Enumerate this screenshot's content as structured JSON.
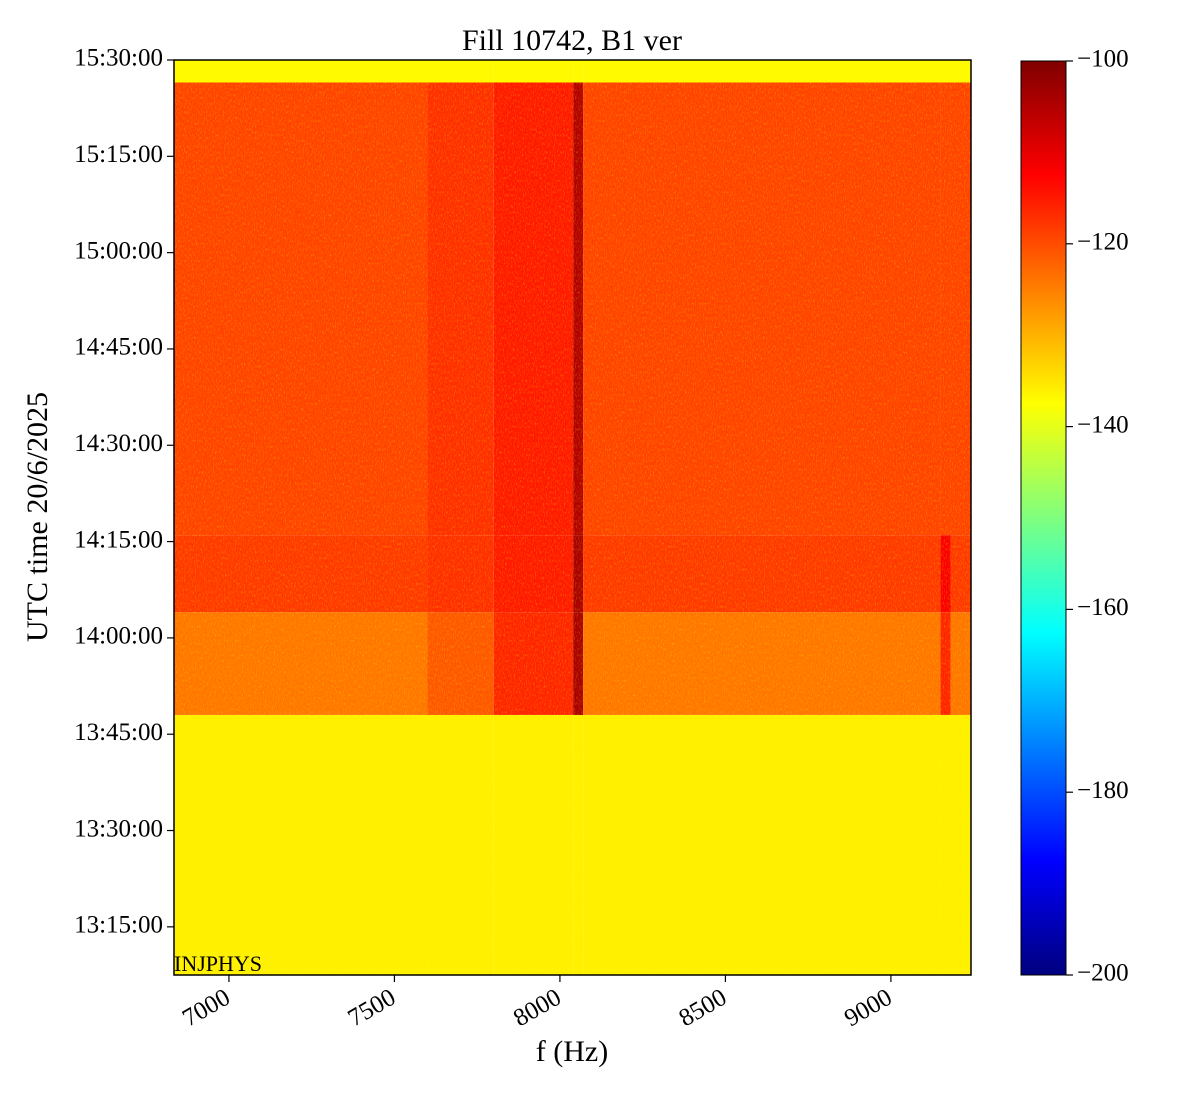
{
  "chart_data": {
    "type": "spectrogram",
    "title": "Fill 10742, B1 ver",
    "xlabel": "f (Hz)",
    "ylabel": "UTC time 20/6/2025",
    "annotation": "INJPHYS",
    "xlim": [
      6834,
      9242
    ],
    "xticks": [
      7000,
      7500,
      8000,
      8500,
      9000
    ],
    "ylim": [
      "13:07:30",
      "15:30:00"
    ],
    "yticks": [
      "13:15:00",
      "13:30:00",
      "13:45:00",
      "14:00:00",
      "14:15:00",
      "14:30:00",
      "14:45:00",
      "15:00:00",
      "15:15:00",
      "15:30:00"
    ],
    "x_edges": [
      6834,
      7600,
      7800,
      8040,
      8070,
      9150,
      9180,
      9242
    ],
    "y_edges": [
      "13:07:30",
      "13:48:00",
      "14:04:00",
      "14:16:00",
      "15:26:30",
      "15:30:00"
    ],
    "values": [
      [
        -136,
        -136,
        -136,
        -136,
        -136,
        -136,
        -136
      ],
      [
        -124,
        -121,
        -116,
        -104,
        -124,
        -116,
        -124
      ],
      [
        -118,
        -117,
        -115,
        -104,
        -118,
        -112,
        -118
      ],
      [
        -119,
        -117,
        -115,
        -105,
        -119,
        -119,
        -119
      ],
      [
        -137,
        -137,
        -137,
        -137,
        -137,
        -137,
        -137
      ]
    ],
    "clim": [
      -200,
      -100
    ],
    "cticks": [
      {
        "value": -200,
        "label": "−200"
      },
      {
        "value": -180,
        "label": "−180"
      },
      {
        "value": -160,
        "label": "−160"
      },
      {
        "value": -140,
        "label": "−140"
      },
      {
        "value": -120,
        "label": "−120"
      },
      {
        "value": -100,
        "label": "−100"
      }
    ],
    "colormap": [
      "#00007f",
      "#0000ff",
      "#007fff",
      "#00ffff",
      "#7fff7f",
      "#ffff00",
      "#ff7f00",
      "#ff0000",
      "#7f0000"
    ]
  }
}
